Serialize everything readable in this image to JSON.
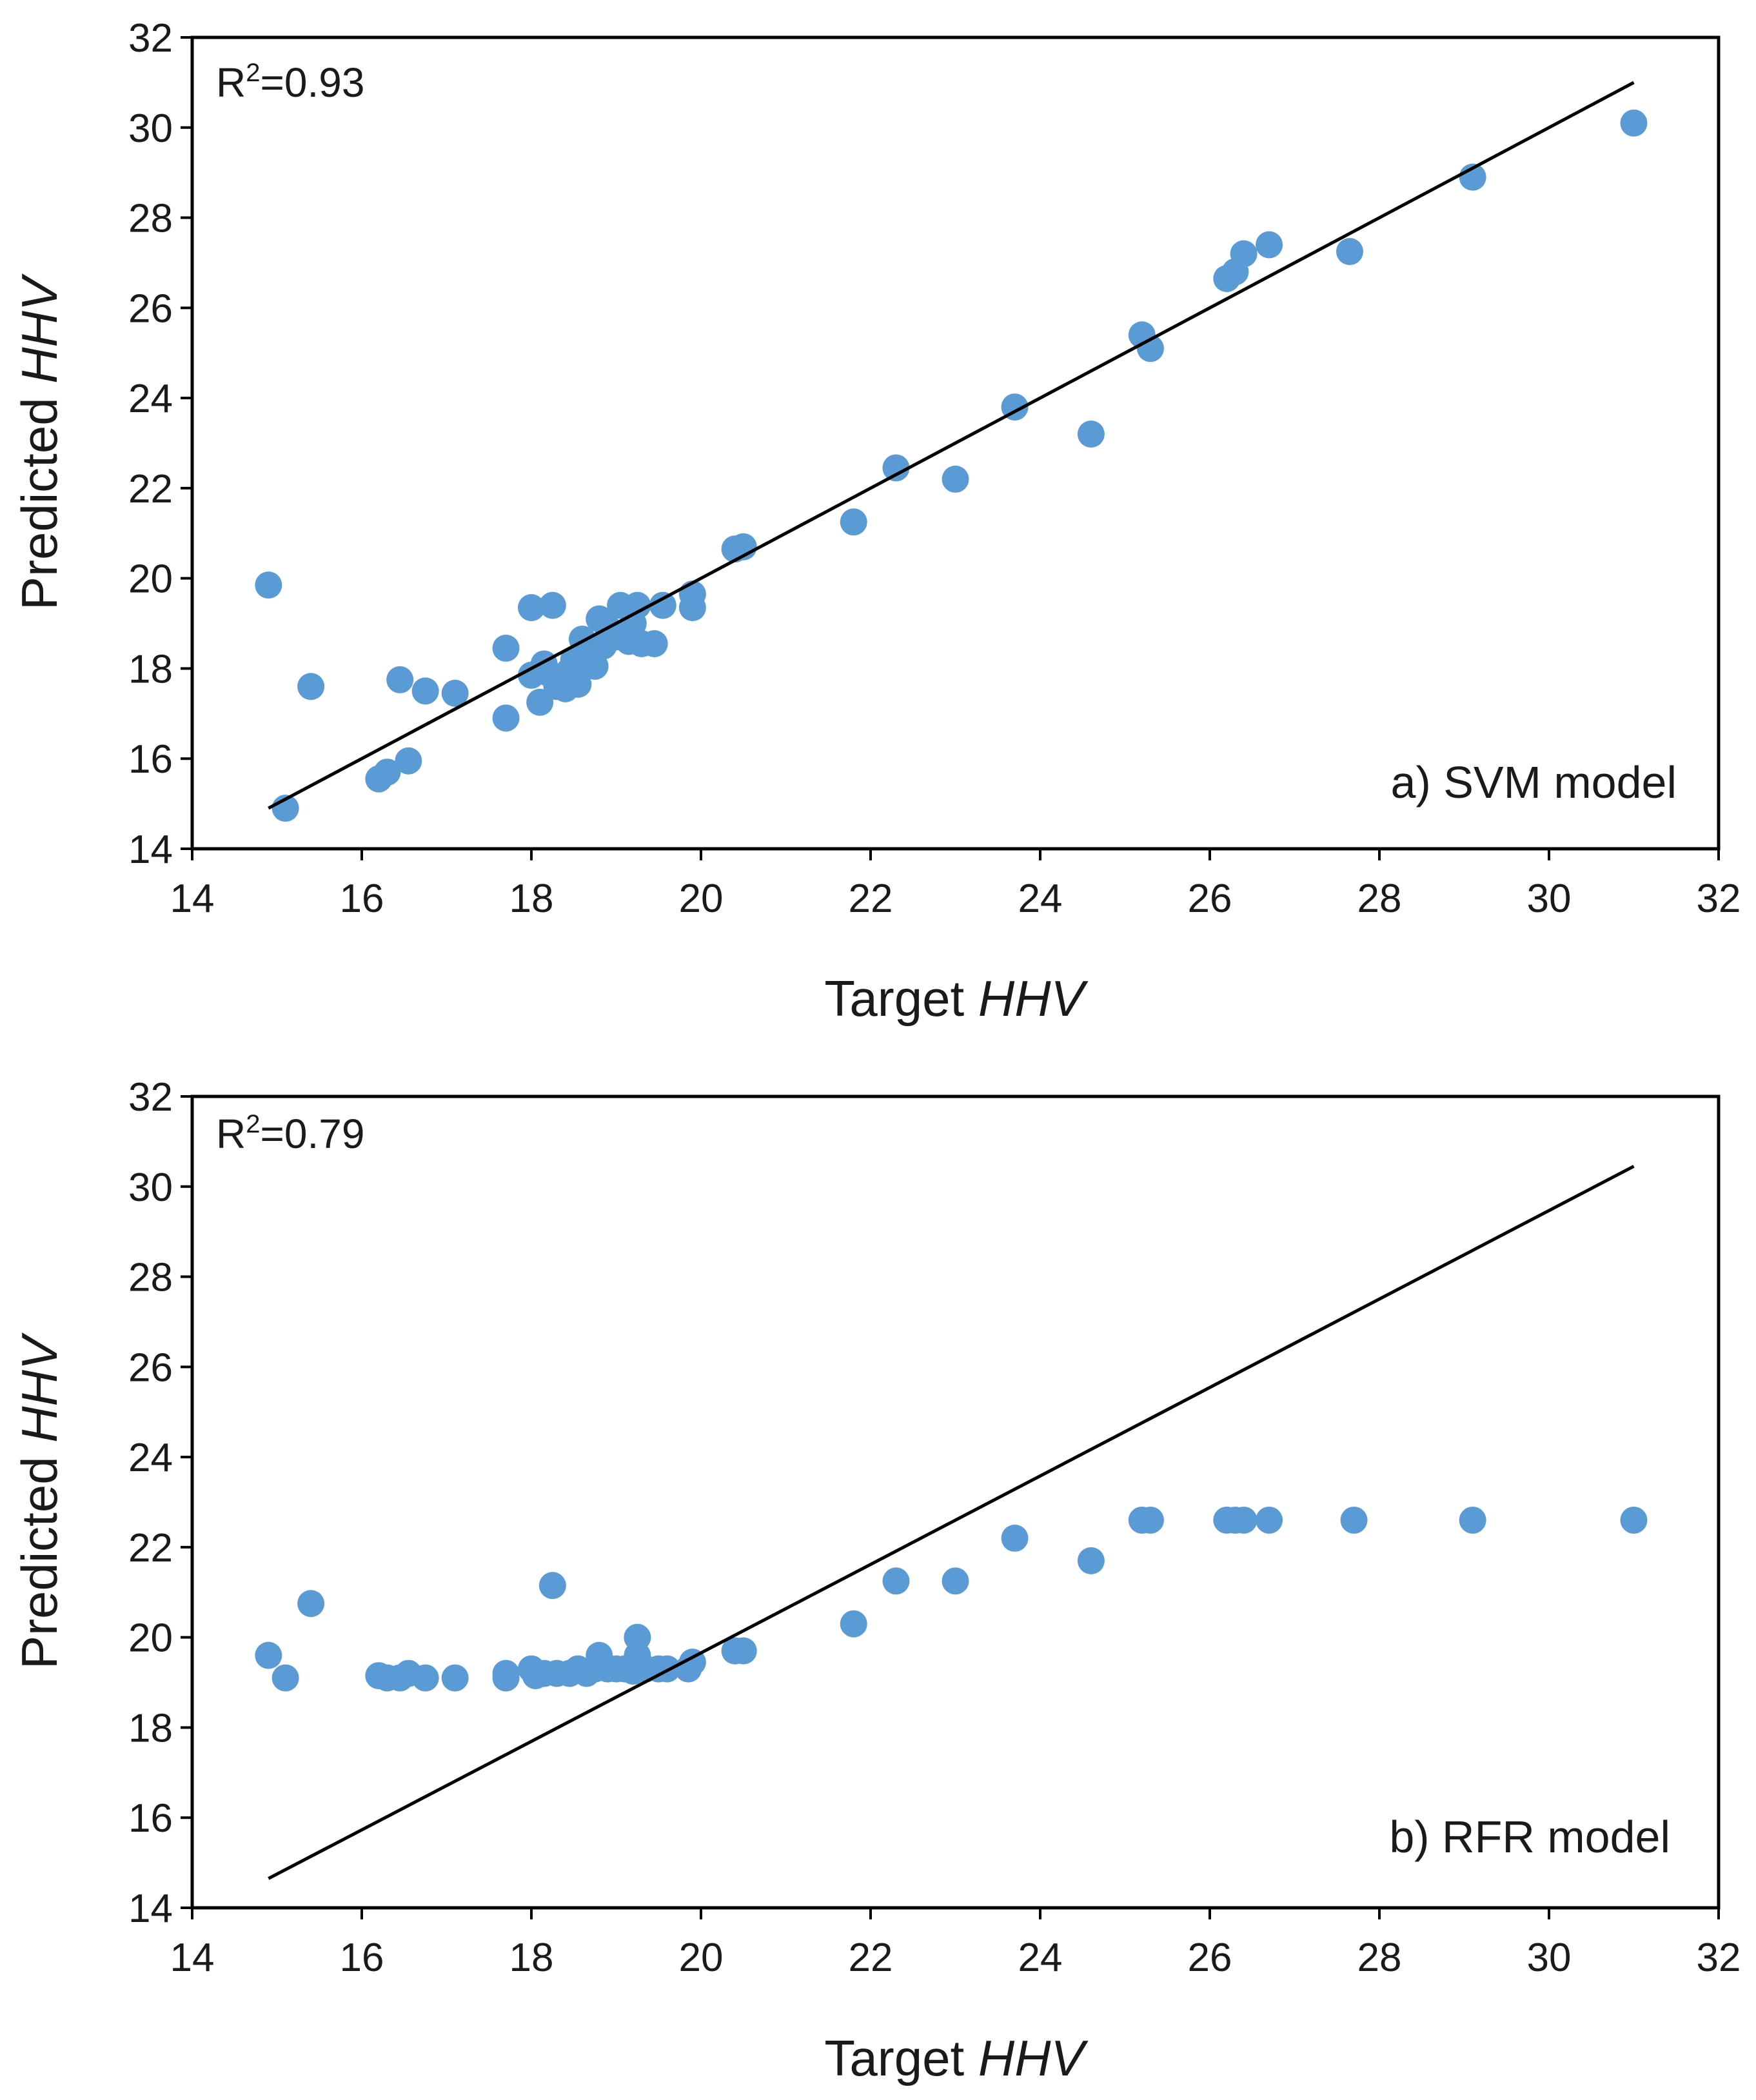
{
  "colors": {
    "points": "#5b9bd5",
    "line": "#000000",
    "axes": "#000000"
  },
  "chart_data": [
    {
      "type": "scatter",
      "xlabel": {
        "plain": "Target ",
        "italic": "HHV"
      },
      "ylabel": {
        "plain": "Predicted ",
        "italic": "HHV"
      },
      "xlim": [
        14,
        32
      ],
      "ylim": [
        14,
        32
      ],
      "xticks": [
        "14",
        "16",
        "18",
        "20",
        "22",
        "24",
        "26",
        "28",
        "30",
        "32"
      ],
      "yticks": [
        "14",
        "16",
        "18",
        "20",
        "22",
        "24",
        "26",
        "28",
        "30",
        "32"
      ],
      "r2": {
        "base": "R",
        "sup": "2",
        "value": "=0.93"
      },
      "panel_label": "a) SVM model",
      "fit_line": {
        "x1": 14.9,
        "y1": 14.9,
        "x2": 31.0,
        "y2": 31.0
      },
      "points": [
        [
          14.9,
          19.85
        ],
        [
          15.1,
          14.9
        ],
        [
          15.4,
          17.6
        ],
        [
          16.2,
          15.55
        ],
        [
          16.3,
          15.7
        ],
        [
          16.45,
          17.75
        ],
        [
          16.55,
          15.95
        ],
        [
          16.75,
          17.5
        ],
        [
          17.1,
          17.45
        ],
        [
          17.7,
          18.45
        ],
        [
          17.7,
          16.9
        ],
        [
          18.0,
          19.35
        ],
        [
          18.0,
          17.85
        ],
        [
          18.1,
          17.25
        ],
        [
          18.15,
          18.1
        ],
        [
          18.2,
          17.9
        ],
        [
          18.25,
          19.4
        ],
        [
          18.3,
          17.6
        ],
        [
          18.4,
          17.55
        ],
        [
          18.45,
          17.95
        ],
        [
          18.5,
          18.2
        ],
        [
          18.55,
          17.65
        ],
        [
          18.6,
          18.65
        ],
        [
          18.65,
          18.1
        ],
        [
          18.7,
          18.4
        ],
        [
          18.75,
          18.05
        ],
        [
          18.8,
          19.1
        ],
        [
          18.85,
          18.5
        ],
        [
          18.9,
          18.9
        ],
        [
          19.0,
          18.7
        ],
        [
          19.05,
          19.4
        ],
        [
          19.15,
          18.6
        ],
        [
          19.2,
          19.0
        ],
        [
          19.25,
          19.4
        ],
        [
          19.3,
          18.55
        ],
        [
          19.45,
          18.55
        ],
        [
          19.55,
          19.4
        ],
        [
          19.9,
          19.65
        ],
        [
          19.9,
          19.35
        ],
        [
          20.4,
          20.65
        ],
        [
          20.5,
          20.7
        ],
        [
          21.8,
          21.25
        ],
        [
          22.3,
          22.45
        ],
        [
          23.0,
          22.2
        ],
        [
          23.7,
          23.8
        ],
        [
          24.6,
          23.2
        ],
        [
          25.2,
          25.4
        ],
        [
          25.3,
          25.1
        ],
        [
          26.2,
          26.65
        ],
        [
          26.3,
          26.8
        ],
        [
          26.4,
          27.2
        ],
        [
          26.7,
          27.4
        ],
        [
          27.65,
          27.25
        ],
        [
          29.1,
          28.9
        ],
        [
          31.0,
          30.1
        ]
      ]
    },
    {
      "type": "scatter",
      "xlabel": {
        "plain": "Target ",
        "italic": "HHV"
      },
      "ylabel": {
        "plain": "Predicted ",
        "italic": "HHV"
      },
      "xlim": [
        14,
        32
      ],
      "ylim": [
        14,
        32
      ],
      "xticks": [
        "14",
        "16",
        "18",
        "20",
        "22",
        "24",
        "26",
        "28",
        "30",
        "32"
      ],
      "yticks": [
        "14",
        "16",
        "18",
        "20",
        "22",
        "24",
        "26",
        "28",
        "30",
        "32"
      ],
      "r2": {
        "base": "R",
        "sup": "2",
        "value": "=0.79"
      },
      "panel_label": "b) RFR model",
      "fit_line": {
        "x1": 14.9,
        "y1": 14.65,
        "x2": 31.0,
        "y2": 30.45
      },
      "points": [
        [
          14.9,
          19.6
        ],
        [
          15.1,
          19.1
        ],
        [
          15.4,
          20.75
        ],
        [
          16.2,
          19.15
        ],
        [
          16.3,
          19.1
        ],
        [
          16.45,
          19.1
        ],
        [
          16.55,
          19.2
        ],
        [
          16.75,
          19.1
        ],
        [
          17.1,
          19.1
        ],
        [
          17.7,
          19.2
        ],
        [
          17.7,
          19.1
        ],
        [
          18.0,
          19.3
        ],
        [
          18.05,
          19.15
        ],
        [
          18.15,
          19.2
        ],
        [
          18.25,
          21.15
        ],
        [
          18.3,
          19.2
        ],
        [
          18.45,
          19.2
        ],
        [
          18.55,
          19.3
        ],
        [
          18.65,
          19.2
        ],
        [
          18.75,
          19.3
        ],
        [
          18.8,
          19.6
        ],
        [
          18.9,
          19.3
        ],
        [
          19.0,
          19.3
        ],
        [
          19.1,
          19.3
        ],
        [
          19.2,
          19.25
        ],
        [
          19.25,
          20.0
        ],
        [
          19.25,
          19.6
        ],
        [
          19.35,
          19.3
        ],
        [
          19.5,
          19.3
        ],
        [
          19.6,
          19.3
        ],
        [
          19.85,
          19.3
        ],
        [
          19.9,
          19.45
        ],
        [
          20.4,
          19.7
        ],
        [
          20.5,
          19.7
        ],
        [
          21.8,
          20.3
        ],
        [
          22.3,
          21.25
        ],
        [
          23.0,
          21.25
        ],
        [
          23.7,
          22.2
        ],
        [
          24.6,
          21.7
        ],
        [
          25.2,
          22.6
        ],
        [
          25.3,
          22.6
        ],
        [
          26.2,
          22.6
        ],
        [
          26.3,
          22.6
        ],
        [
          26.4,
          22.6
        ],
        [
          26.7,
          22.6
        ],
        [
          27.7,
          22.6
        ],
        [
          29.1,
          22.6
        ],
        [
          31.0,
          22.6
        ]
      ]
    }
  ]
}
